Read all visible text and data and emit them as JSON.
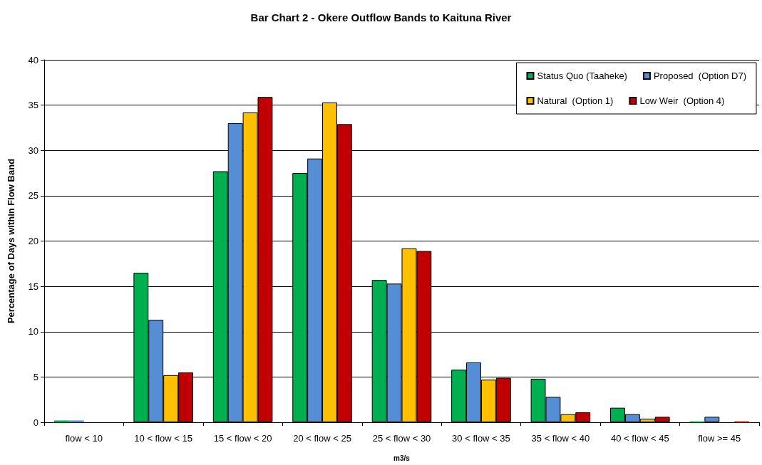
{
  "chart_data": {
    "type": "bar",
    "title": "Bar Chart 2 - Okere Outflow Bands to Kaituna River",
    "xlabel": "m3/s",
    "ylabel": "Percentage of Days within Flow Band",
    "categories": [
      "flow < 10",
      "10 < flow < 15",
      "15 < flow < 20",
      "20 < flow < 25",
      "25 < flow < 30",
      "30 < flow < 35",
      "35 < flow < 40",
      "40 < flow < 45",
      "flow >= 45"
    ],
    "series": [
      {
        "name": "Status Quo (Taaheke)",
        "color": "#00b050",
        "values": [
          0.2,
          16.5,
          27.7,
          27.5,
          15.7,
          5.8,
          4.8,
          1.6,
          0.1
        ]
      },
      {
        "name": "Proposed  (Option D7)",
        "color": "#558ed5",
        "values": [
          0.2,
          11.3,
          33.0,
          29.1,
          15.3,
          6.6,
          2.8,
          0.9,
          0.6
        ]
      },
      {
        "name": "Natural  (Option 1)",
        "color": "#ffc000",
        "values": [
          0,
          5.2,
          34.2,
          35.3,
          19.2,
          4.7,
          0.9,
          0.4,
          0
        ]
      },
      {
        "name": "Low Weir  (Option 4)",
        "color": "#c00000",
        "values": [
          0,
          5.5,
          35.9,
          32.9,
          18.9,
          4.9,
          1.1,
          0.6,
          0.1
        ]
      }
    ],
    "ylim": [
      0,
      40
    ],
    "yticks": [
      0,
      5,
      10,
      15,
      20,
      25,
      30,
      35,
      40
    ],
    "grid": "y",
    "legend": "top right"
  }
}
